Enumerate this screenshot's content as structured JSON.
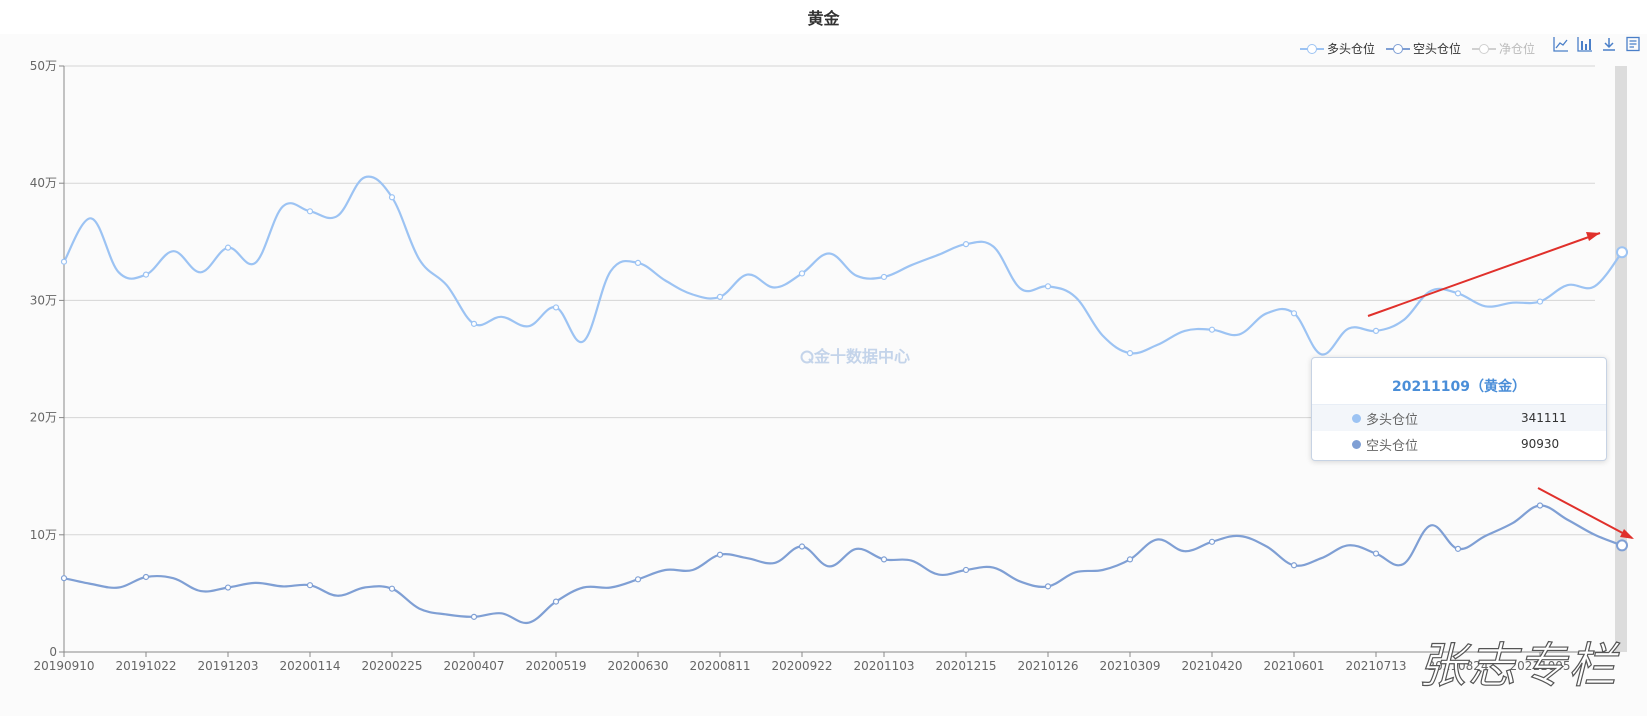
{
  "title": "黄金",
  "legend": {
    "items": [
      {
        "label": "多头仓位",
        "color": "#9cc3f3",
        "active": true
      },
      {
        "label": "空头仓位",
        "color": "#7f9fd4",
        "active": true
      },
      {
        "label": "净仓位",
        "color": "#cccccc",
        "active": false
      }
    ]
  },
  "toolbox": [
    "line-chart-icon",
    "bar-chart-icon",
    "download-icon",
    "data-view-icon"
  ],
  "watermark": "金十数据中心",
  "tooltip": {
    "header": "20211109（黄金）",
    "rows": [
      {
        "label": "多头仓位",
        "value": "341111",
        "color": "#9cc3f3"
      },
      {
        "label": "空头仓位",
        "value": "90930",
        "color": "#7f9fd4"
      }
    ]
  },
  "signature": "张志专栏",
  "colors": {
    "long": "#9cc3f3",
    "short": "#7f9fd4",
    "arrow": "#e0302b",
    "grid": "#d6d6d6"
  },
  "chart_data": {
    "type": "line",
    "smooth": true,
    "x": [
      "20190910",
      "20190924",
      "20191008",
      "20191022",
      "20191105",
      "20191119",
      "20191203",
      "20191217",
      "20191231",
      "20200114",
      "20200128",
      "20200211",
      "20200225",
      "20200310",
      "20200324",
      "20200407",
      "20200421",
      "20200505",
      "20200519",
      "20200602",
      "20200616",
      "20200630",
      "20200714",
      "20200728",
      "20200811",
      "20200825",
      "20200908",
      "20200922",
      "20201006",
      "20201020",
      "20201103",
      "20201117",
      "20201201",
      "20201215",
      "20201229",
      "20210112",
      "20210126",
      "20210209",
      "20210223",
      "20210309",
      "20210323",
      "20210406",
      "20210420",
      "20210504",
      "20210518",
      "20210601",
      "20210615",
      "20210629",
      "20210713",
      "20210727",
      "20210810",
      "20210824",
      "20210907",
      "20210921",
      "20211005",
      "20211019",
      "20211102",
      "20211109"
    ],
    "xticks": [
      "20190910",
      "20191022",
      "20191203",
      "20200114",
      "20200225",
      "20200407",
      "20200519",
      "20200630",
      "20200811",
      "20200922",
      "20201103",
      "20201215",
      "20210126",
      "20210309",
      "20210420",
      "20210601",
      "20210713",
      "20210824",
      "20211005"
    ],
    "yticks": [
      "0",
      "10万",
      "20万",
      "30万",
      "40万",
      "50万"
    ],
    "ylim": [
      0,
      500000
    ],
    "series": [
      {
        "name": "多头仓位",
        "values": [
          333000,
          370000,
          324000,
          322000,
          342000,
          324000,
          345000,
          332000,
          380000,
          376000,
          372000,
          405000,
          388000,
          335000,
          313000,
          280000,
          286000,
          278000,
          294000,
          265000,
          325000,
          332000,
          317000,
          305000,
          303000,
          322000,
          311000,
          323000,
          340000,
          321000,
          320000,
          330000,
          339000,
          348000,
          346000,
          310000,
          312000,
          303000,
          270000,
          255000,
          262000,
          274000,
          275000,
          271000,
          289000,
          289000,
          254000,
          276000,
          274000,
          283000,
          308000,
          306000,
          295000,
          298000,
          299000,
          313000,
          312000,
          341111
        ]
      },
      {
        "name": "空头仓位",
        "values": [
          63000,
          58000,
          55000,
          64000,
          63000,
          52000,
          55000,
          59000,
          56000,
          57000,
          48000,
          55000,
          54000,
          37000,
          32000,
          30000,
          33000,
          25000,
          43000,
          55000,
          55000,
          62000,
          70000,
          70000,
          83000,
          80000,
          76000,
          90000,
          73000,
          88000,
          79000,
          78000,
          66000,
          70000,
          72000,
          60000,
          56000,
          68000,
          70000,
          79000,
          96000,
          86000,
          94000,
          99000,
          90000,
          74000,
          80000,
          91000,
          84000,
          75000,
          108000,
          88000,
          99000,
          110000,
          125000,
          113000,
          100000,
          90930
        ]
      }
    ]
  }
}
